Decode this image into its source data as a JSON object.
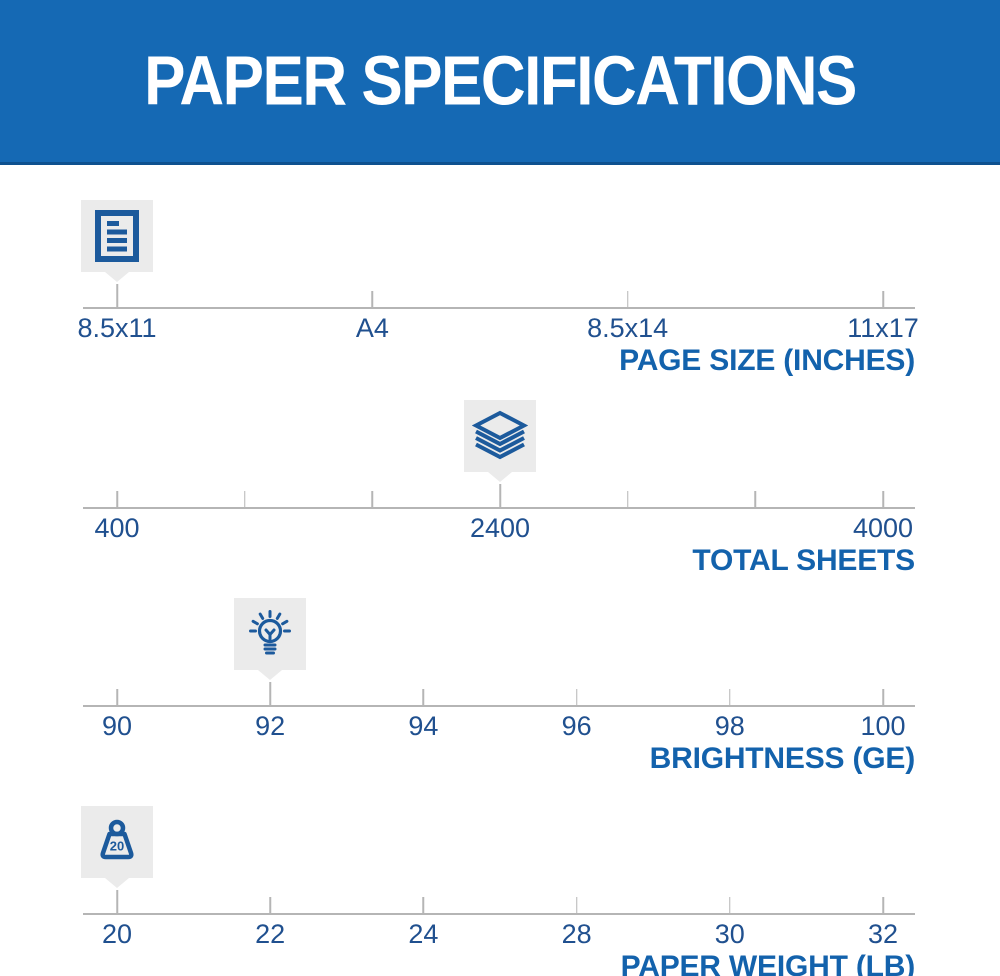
{
  "header": {
    "title": "PAPER SPECIFICATIONS"
  },
  "colors": {
    "header_bg": "#1569b4",
    "header_border": "#0e518f",
    "header_text": "#ffffff",
    "title_blue": "#1362ac",
    "label_blue": "#20508f",
    "icon_blue": "#1c5a9c",
    "badge_bg": "#ebebeb",
    "axis_gray": "#b5b5b5",
    "background": "#ffffff"
  },
  "chart_data": {
    "type": "scale",
    "description": "Four horizontal specification scales; each has gray tick marks with blue tick labels below, a bold blue right-aligned title, and a gray square badge with a blue icon pointing at this product's value on the scale.",
    "scales": [
      {
        "id": "page-size",
        "title": "PAGE SIZE (INCHES)",
        "ticks": [
          "8.5x11",
          "A4",
          "8.5x14",
          "11x17"
        ],
        "marker": {
          "tick_index": 0,
          "value": "8.5x11",
          "icon": "document-icon"
        }
      },
      {
        "id": "total-sheets",
        "title": "TOTAL SHEETS",
        "ticks": [
          "400",
          "",
          "",
          "2400",
          "",
          "",
          "4000"
        ],
        "marker": {
          "tick_index": 3,
          "value": "2400",
          "icon": "paper-stack-icon"
        }
      },
      {
        "id": "brightness",
        "title": "BRIGHTNESS (GE)",
        "ticks": [
          "90",
          "92",
          "94",
          "96",
          "98",
          "100"
        ],
        "marker": {
          "tick_index": 1,
          "value": "92",
          "icon": "lightbulb-icon"
        }
      },
      {
        "id": "paper-weight",
        "title": "PAPER WEIGHT (LB)",
        "ticks": [
          "20",
          "22",
          "24",
          "28",
          "30",
          "32"
        ],
        "marker": {
          "tick_index": 0,
          "value": "20",
          "icon": "weight-icon",
          "icon_text": "20"
        }
      }
    ]
  }
}
